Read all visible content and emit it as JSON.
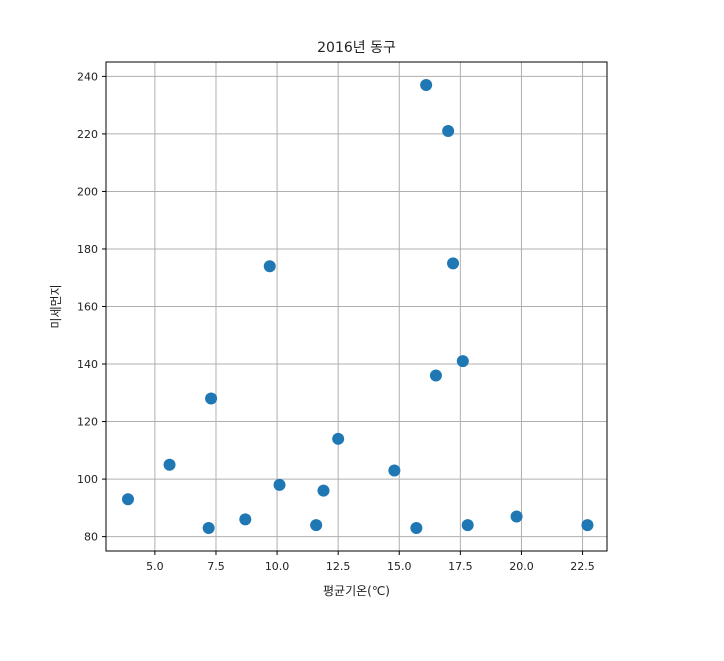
{
  "chart_data": {
    "type": "scatter",
    "title": "2016년 동구",
    "xlabel": "평균기온(℃)",
    "ylabel": "미세먼지",
    "xlim": [
      3.0,
      23.5
    ],
    "ylim": [
      75,
      245
    ],
    "xticks": [
      5.0,
      7.5,
      10.0,
      12.5,
      15.0,
      17.5,
      20.0,
      22.5
    ],
    "xtick_labels": [
      "5.0",
      "7.5",
      "10.0",
      "12.5",
      "15.0",
      "17.5",
      "20.0",
      "22.5"
    ],
    "yticks": [
      80,
      100,
      120,
      140,
      160,
      180,
      200,
      220,
      240
    ],
    "ytick_labels": [
      "80",
      "100",
      "120",
      "140",
      "160",
      "180",
      "200",
      "220",
      "240"
    ],
    "grid": true,
    "marker_color": "#1f77b4",
    "points": [
      {
        "x": 3.9,
        "y": 93
      },
      {
        "x": 5.6,
        "y": 105
      },
      {
        "x": 7.2,
        "y": 83
      },
      {
        "x": 7.3,
        "y": 128
      },
      {
        "x": 8.7,
        "y": 86
      },
      {
        "x": 9.7,
        "y": 174
      },
      {
        "x": 10.1,
        "y": 98
      },
      {
        "x": 11.6,
        "y": 84
      },
      {
        "x": 11.9,
        "y": 96
      },
      {
        "x": 12.5,
        "y": 114
      },
      {
        "x": 14.8,
        "y": 103
      },
      {
        "x": 15.7,
        "y": 83
      },
      {
        "x": 16.1,
        "y": 237
      },
      {
        "x": 16.5,
        "y": 136
      },
      {
        "x": 17.0,
        "y": 221
      },
      {
        "x": 17.2,
        "y": 175
      },
      {
        "x": 17.6,
        "y": 141
      },
      {
        "x": 17.8,
        "y": 84
      },
      {
        "x": 19.8,
        "y": 87
      },
      {
        "x": 22.7,
        "y": 84
      }
    ]
  }
}
